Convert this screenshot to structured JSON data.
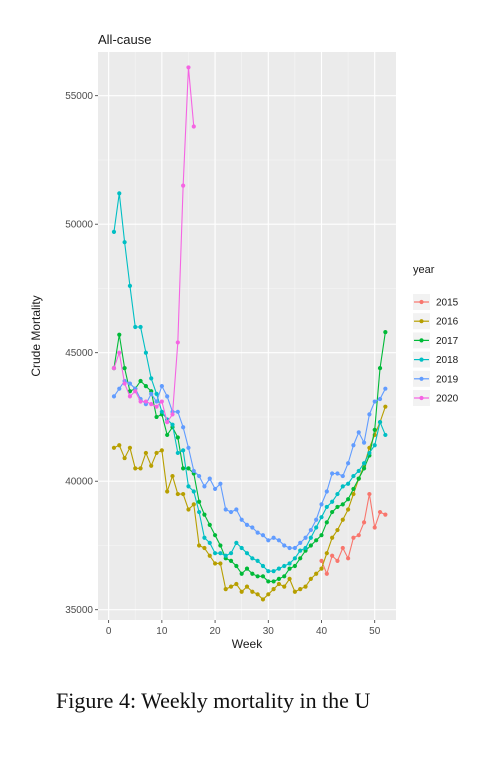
{
  "caption": "Figure 4: Weekly mortality in the U",
  "chart_data": {
    "type": "line",
    "title": "All-cause",
    "xlabel": "Week",
    "ylabel": "Crude Mortality",
    "xlim": [
      -2,
      54
    ],
    "ylim": [
      34600,
      56700
    ],
    "x_ticks": [
      0,
      10,
      20,
      30,
      40,
      50
    ],
    "y_ticks": [
      35000,
      40000,
      45000,
      50000,
      55000
    ],
    "y_tick_labels": [
      "35000",
      "40000",
      "45000",
      "50000",
      "55000"
    ],
    "grid": true,
    "panel_background": "#ebebeb",
    "legend": {
      "title": "year",
      "position": "right"
    },
    "series": [
      {
        "name": "2015",
        "color": "#f8766d",
        "x": [
          40,
          41,
          42,
          43,
          44,
          45,
          46,
          47,
          48,
          49,
          50,
          51,
          52
        ],
        "y": [
          36900,
          36400,
          37100,
          36900,
          37400,
          37000,
          37800,
          37900,
          38400,
          39500,
          38200,
          38800,
          38700
        ]
      },
      {
        "name": "2016",
        "color": "#b79f00",
        "x": [
          1,
          2,
          3,
          4,
          5,
          6,
          7,
          8,
          9,
          10,
          11,
          12,
          13,
          14,
          15,
          16,
          17,
          18,
          19,
          20,
          21,
          22,
          23,
          24,
          25,
          26,
          27,
          28,
          29,
          30,
          31,
          32,
          33,
          34,
          35,
          36,
          37,
          38,
          39,
          40,
          41,
          42,
          43,
          44,
          45,
          46,
          47,
          48,
          49,
          50,
          51,
          52
        ],
        "y": [
          41300,
          41400,
          40900,
          41300,
          40500,
          40500,
          41100,
          40600,
          41100,
          41200,
          39600,
          40200,
          39500,
          39500,
          38900,
          39100,
          37500,
          37400,
          37100,
          36800,
          36800,
          35800,
          35900,
          36000,
          35700,
          35900,
          35700,
          35600,
          35400,
          35600,
          35800,
          36000,
          35900,
          36200,
          35700,
          35800,
          35900,
          36200,
          36400,
          36600,
          37200,
          37800,
          38100,
          38500,
          38900,
          39500,
          40100,
          40600,
          41300,
          41800,
          42300,
          42900
        ]
      },
      {
        "name": "2017",
        "color": "#00ba38",
        "x": [
          1,
          2,
          3,
          4,
          5,
          6,
          7,
          8,
          9,
          10,
          11,
          12,
          13,
          14,
          15,
          16,
          17,
          18,
          19,
          20,
          21,
          22,
          23,
          24,
          25,
          26,
          27,
          28,
          29,
          30,
          31,
          32,
          33,
          34,
          35,
          36,
          37,
          38,
          39,
          40,
          41,
          42,
          43,
          44,
          45,
          46,
          47,
          48,
          49,
          50,
          51,
          52
        ],
        "y": [
          44400,
          45700,
          44400,
          43500,
          43600,
          43900,
          43700,
          43500,
          42500,
          42600,
          41800,
          42100,
          41700,
          40500,
          40500,
          40300,
          39200,
          38700,
          38300,
          37900,
          37500,
          37000,
          36900,
          36700,
          36400,
          36600,
          36400,
          36300,
          36300,
          36100,
          36100,
          36200,
          36300,
          36600,
          36700,
          37000,
          37300,
          37500,
          37700,
          37900,
          38400,
          38800,
          39000,
          39100,
          39300,
          39700,
          40100,
          40500,
          41000,
          42000,
          44400,
          45800
        ]
      },
      {
        "name": "2018",
        "color": "#00bfc4",
        "x": [
          1,
          2,
          3,
          4,
          5,
          6,
          7,
          8,
          9,
          10,
          11,
          12,
          13,
          14,
          15,
          16,
          17,
          18,
          19,
          20,
          21,
          22,
          23,
          24,
          25,
          26,
          27,
          28,
          29,
          30,
          31,
          32,
          33,
          34,
          35,
          36,
          37,
          38,
          39,
          40,
          41,
          42,
          43,
          44,
          45,
          46,
          47,
          48,
          49,
          50,
          51,
          52
        ],
        "y": [
          49700,
          51200,
          49300,
          47600,
          46000,
          46000,
          45000,
          44000,
          43400,
          42700,
          42400,
          42200,
          41100,
          41200,
          39800,
          39600,
          38800,
          37800,
          37600,
          37200,
          37200,
          37100,
          37200,
          37600,
          37400,
          37200,
          37000,
          36900,
          36700,
          36500,
          36500,
          36600,
          36700,
          36800,
          37000,
          37300,
          37400,
          37800,
          38200,
          38600,
          39000,
          39200,
          39500,
          39800,
          39900,
          40200,
          40400,
          40700,
          41100,
          41400,
          42300,
          41800
        ]
      },
      {
        "name": "2019",
        "color": "#619cff",
        "x": [
          1,
          2,
          3,
          4,
          5,
          6,
          7,
          8,
          9,
          10,
          11,
          12,
          13,
          14,
          15,
          16,
          17,
          18,
          19,
          20,
          21,
          22,
          23,
          24,
          25,
          26,
          27,
          28,
          29,
          30,
          31,
          32,
          33,
          34,
          35,
          36,
          37,
          38,
          39,
          40,
          41,
          42,
          43,
          44,
          45,
          46,
          47,
          48,
          49,
          50,
          51,
          52
        ],
        "y": [
          43300,
          43600,
          43900,
          43800,
          43600,
          43200,
          43000,
          43400,
          43100,
          43700,
          43300,
          42700,
          42700,
          42100,
          41300,
          40400,
          40200,
          39800,
          40100,
          39700,
          39900,
          38900,
          38800,
          38900,
          38500,
          38300,
          38200,
          38000,
          37900,
          37700,
          37800,
          37700,
          37500,
          37400,
          37400,
          37600,
          37800,
          38100,
          38500,
          39100,
          39600,
          40300,
          40300,
          40200,
          40700,
          41400,
          41900,
          41500,
          42600,
          43100,
          43200,
          43600
        ]
      },
      {
        "name": "2020",
        "color": "#f564e3",
        "x": [
          1,
          2,
          3,
          4,
          5,
          6,
          7,
          8,
          9,
          10,
          11,
          12,
          13,
          14,
          15,
          16
        ],
        "y": [
          44400,
          45000,
          43800,
          43300,
          43500,
          43100,
          43100,
          43000,
          42900,
          43100,
          42300,
          42600,
          45400,
          51500,
          56100,
          53800
        ]
      }
    ]
  }
}
